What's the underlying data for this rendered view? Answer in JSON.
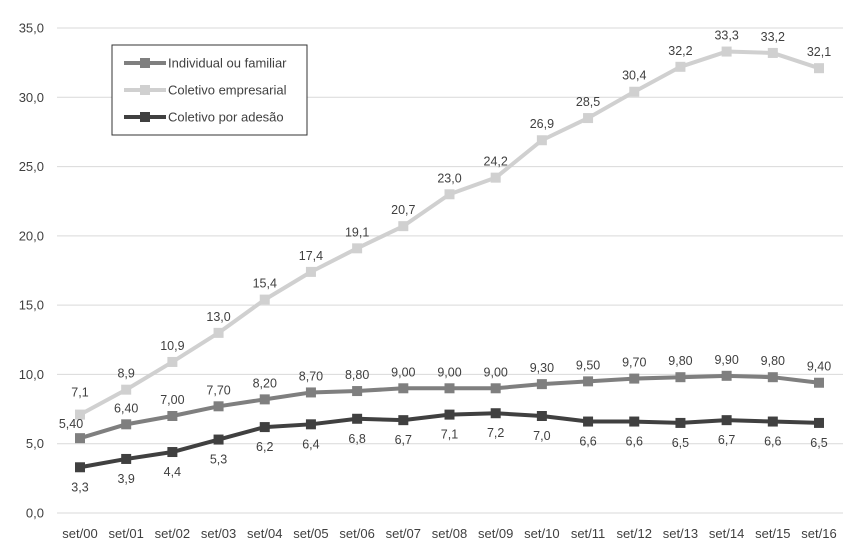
{
  "chart_data": {
    "type": "line",
    "title": "",
    "xlabel": "",
    "ylabel": "",
    "ylim": [
      0,
      35
    ],
    "yticks": [
      "0,0",
      "5,0",
      "10,0",
      "15,0",
      "20,0",
      "25,0",
      "30,0",
      "35,0"
    ],
    "ytick_values": [
      0,
      5,
      10,
      15,
      20,
      25,
      30,
      35
    ],
    "grid": true,
    "legend_position": "top-left",
    "categories": [
      "set/00",
      "set/01",
      "set/02",
      "set/03",
      "set/04",
      "set/05",
      "set/06",
      "set/07",
      "set/08",
      "set/09",
      "set/10",
      "set/11",
      "set/12",
      "set/13",
      "set/14",
      "set/15",
      "set/16"
    ],
    "series": [
      {
        "name": "Individual ou familiar",
        "color": "#7f7f7f",
        "values": [
          5.4,
          6.4,
          7.0,
          7.7,
          8.2,
          8.7,
          8.8,
          9.0,
          9.0,
          9.0,
          9.3,
          9.5,
          9.7,
          9.8,
          9.9,
          9.8,
          9.4
        ],
        "labels": [
          "5,40",
          "6,40",
          "7,00",
          "7,70",
          "8,20",
          "8,70",
          "8,80",
          "9,00",
          "9,00",
          "9,00",
          "9,30",
          "9,50",
          "9,70",
          "9,80",
          "9,90",
          "9,80",
          "9,40"
        ],
        "label_position": "above"
      },
      {
        "name": "Coletivo empresarial",
        "color": "#d0d0d0",
        "values": [
          7.1,
          8.9,
          10.9,
          13.0,
          15.4,
          17.4,
          19.1,
          20.7,
          23.0,
          24.2,
          26.9,
          28.5,
          30.4,
          32.2,
          33.3,
          33.2,
          32.1
        ],
        "labels": [
          "7,1",
          "8,9",
          "10,9",
          "13,0",
          "15,4",
          "17,4",
          "19,1",
          "20,7",
          "23,0",
          "24,2",
          "26,9",
          "28,5",
          "30,4",
          "32,2",
          "33,3",
          "33,2",
          "32,1"
        ],
        "label_position": "above"
      },
      {
        "name": "Coletivo por adesão",
        "color": "#404040",
        "values": [
          3.3,
          3.9,
          4.4,
          5.3,
          6.2,
          6.4,
          6.8,
          6.7,
          7.1,
          7.2,
          7.0,
          6.6,
          6.6,
          6.5,
          6.7,
          6.6,
          6.5
        ],
        "labels": [
          "3,3",
          "3,9",
          "4,4",
          "5,3",
          "6,2",
          "6,4",
          "6,8",
          "6,7",
          "7,1",
          "7,2",
          "7,0",
          "6,6",
          "6,6",
          "6,5",
          "6,7",
          "6,6",
          "6,5"
        ],
        "label_position": "below"
      }
    ]
  }
}
